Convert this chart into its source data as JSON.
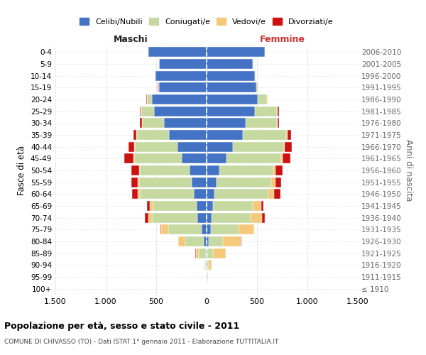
{
  "age_groups": [
    "100+",
    "95-99",
    "90-94",
    "85-89",
    "80-84",
    "75-79",
    "70-74",
    "65-69",
    "60-64",
    "55-59",
    "50-54",
    "45-49",
    "40-44",
    "35-39",
    "30-34",
    "25-29",
    "20-24",
    "15-19",
    "10-14",
    "5-9",
    "0-4"
  ],
  "birth_years": [
    "≤ 1910",
    "1911-1915",
    "1916-1920",
    "1921-1925",
    "1926-1930",
    "1931-1935",
    "1936-1940",
    "1941-1945",
    "1946-1950",
    "1951-1955",
    "1956-1960",
    "1961-1965",
    "1966-1970",
    "1971-1975",
    "1976-1980",
    "1981-1985",
    "1986-1990",
    "1991-1995",
    "1996-2000",
    "2001-2005",
    "2006-2010"
  ],
  "males": {
    "celibi": [
      2,
      3,
      5,
      8,
      30,
      50,
      90,
      100,
      130,
      150,
      170,
      250,
      290,
      370,
      420,
      520,
      540,
      470,
      510,
      470,
      580
    ],
    "coniugati": [
      1,
      2,
      10,
      70,
      180,
      330,
      450,
      430,
      530,
      520,
      490,
      470,
      420,
      320,
      220,
      130,
      50,
      10,
      5,
      3,
      2
    ],
    "vedovi": [
      0,
      0,
      5,
      30,
      70,
      70,
      40,
      30,
      20,
      10,
      10,
      5,
      5,
      5,
      3,
      5,
      3,
      2,
      1,
      1,
      1
    ],
    "divorziati": [
      0,
      0,
      1,
      2,
      5,
      5,
      30,
      30,
      60,
      70,
      80,
      90,
      60,
      30,
      20,
      10,
      5,
      3,
      1,
      1,
      1
    ]
  },
  "females": {
    "nubili": [
      2,
      5,
      8,
      10,
      20,
      40,
      50,
      60,
      80,
      100,
      130,
      200,
      260,
      360,
      390,
      480,
      510,
      490,
      480,
      460,
      580
    ],
    "coniugate": [
      1,
      3,
      10,
      50,
      140,
      280,
      390,
      400,
      530,
      540,
      530,
      530,
      500,
      430,
      310,
      220,
      90,
      20,
      5,
      3,
      2
    ],
    "vedove": [
      2,
      5,
      30,
      130,
      180,
      150,
      110,
      80,
      60,
      40,
      25,
      20,
      15,
      10,
      5,
      5,
      3,
      2,
      1,
      1,
      1
    ],
    "divorziate": [
      0,
      0,
      1,
      2,
      3,
      5,
      30,
      25,
      60,
      60,
      70,
      80,
      70,
      35,
      15,
      10,
      5,
      3,
      1,
      1,
      1
    ]
  },
  "colors": {
    "celibi": "#4472C4",
    "coniugati": "#C5D9A0",
    "vedovi": "#F5C87A",
    "divorziati": "#CC1111"
  },
  "xlim": 1500,
  "xtick_labels": [
    "1.500",
    "1.000",
    "500",
    "0",
    "500",
    "1.000",
    "1.500"
  ],
  "title": "Popolazione per età, sesso e stato civile - 2011",
  "subtitle": "COMUNE DI CHIVASSO (TO) - Dati ISTAT 1° gennaio 2011 - Elaborazione TUTTITALIA.IT",
  "ylabel_left": "Fasce di età",
  "ylabel_right": "Anni di nascita",
  "legend_labels": [
    "Celibi/Nubili",
    "Coniugati/e",
    "Vedovi/e",
    "Divorziati/e"
  ],
  "legend_colors": [
    "#4472C4",
    "#C5D9A0",
    "#F5C87A",
    "#CC1111"
  ],
  "maschi_label": "Maschi",
  "femmine_label": "Femmine",
  "background_color": "#FFFFFF",
  "grid_color": "#CCCCCC"
}
